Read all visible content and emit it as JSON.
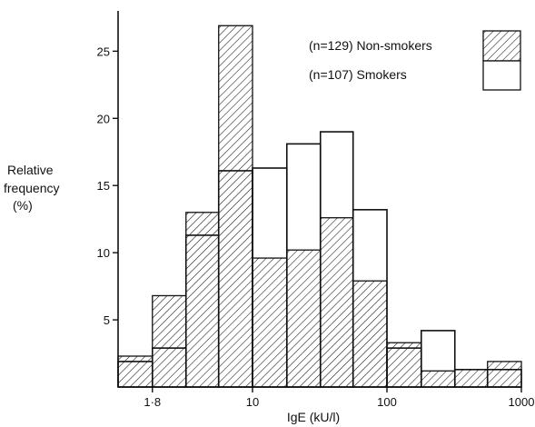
{
  "chart_data": {
    "type": "bar",
    "title": "",
    "xlabel": "IgE (kU/l)",
    "ylabel_lines": [
      "Relative",
      "frequency",
      "(%)"
    ],
    "x_scale": "log",
    "xlim": [
      1,
      1000
    ],
    "ylim": [
      0,
      28
    ],
    "x_ticks": [
      {
        "value": 1.8,
        "label": "1·8"
      },
      {
        "value": 10,
        "label": "10"
      },
      {
        "value": 100,
        "label": "100"
      },
      {
        "value": 1000,
        "label": "1000"
      }
    ],
    "y_ticks": [
      {
        "value": 5,
        "label": "5"
      },
      {
        "value": 10,
        "label": "10"
      },
      {
        "value": 15,
        "label": "15"
      },
      {
        "value": 20,
        "label": "20"
      },
      {
        "value": 25,
        "label": "25"
      }
    ],
    "bin_edges": [
      1,
      1.8,
      3.2,
      5.6,
      10,
      18,
      32,
      56,
      100,
      180,
      320,
      560,
      1000
    ],
    "series": [
      {
        "name": "(n=129) Non-smokers",
        "style": "hatched",
        "values": [
          2.3,
          6.8,
          13.0,
          26.9,
          9.6,
          10.2,
          12.6,
          7.9,
          3.3,
          1.2,
          1.3,
          1.9
        ]
      },
      {
        "name": "(n=107) Smokers",
        "style": "open",
        "values": [
          1.9,
          2.9,
          11.3,
          16.1,
          16.3,
          18.1,
          19.0,
          13.2,
          2.9,
          4.2,
          1.3,
          1.3
        ]
      }
    ]
  }
}
